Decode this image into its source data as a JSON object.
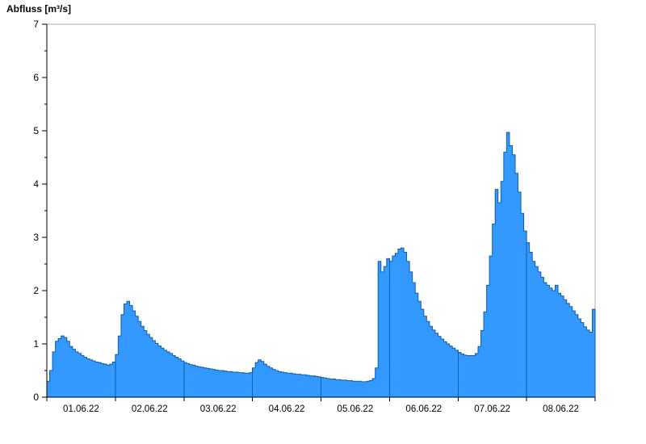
{
  "chart_data": {
    "type": "area",
    "title": "Abfluss [m³/s]",
    "ylabel": "Abfluss [m³/s]",
    "xlabel": "",
    "ylim": [
      0,
      7
    ],
    "y_ticks": [
      0,
      1,
      2,
      3,
      4,
      5,
      6,
      7
    ],
    "x_tick_labels": [
      "01.06.22",
      "02.06.22",
      "03.06.22",
      "04.06.22",
      "05.06.22",
      "06.06.22",
      "07.06.22",
      "08.06.22"
    ],
    "hours_per_day": 24,
    "grid": "off",
    "legend": "none",
    "colors": {
      "fill": "#3399FF",
      "outline": "#0F5CA8",
      "day_divider": "#0F5CA8",
      "axis": "#000000",
      "frame": "#A9A9A9",
      "text": "#000000",
      "background": "#FFFFFF"
    },
    "series": [
      {
        "name": "Abfluss",
        "unit": "m³/s",
        "step": "hourly",
        "values_hourly": [
          0.3,
          0.5,
          0.85,
          1.05,
          1.1,
          1.15,
          1.12,
          1.05,
          0.95,
          0.9,
          0.85,
          0.82,
          0.78,
          0.75,
          0.72,
          0.7,
          0.68,
          0.66,
          0.65,
          0.63,
          0.62,
          0.6,
          0.62,
          0.66,
          0.8,
          1.15,
          1.55,
          1.75,
          1.8,
          1.72,
          1.62,
          1.52,
          1.42,
          1.33,
          1.25,
          1.18,
          1.12,
          1.06,
          1.01,
          0.96,
          0.92,
          0.88,
          0.85,
          0.82,
          0.78,
          0.75,
          0.72,
          0.68,
          0.65,
          0.63,
          0.61,
          0.6,
          0.58,
          0.57,
          0.56,
          0.55,
          0.54,
          0.53,
          0.52,
          0.51,
          0.5,
          0.5,
          0.49,
          0.48,
          0.48,
          0.47,
          0.47,
          0.46,
          0.46,
          0.45,
          0.45,
          0.46,
          0.55,
          0.65,
          0.7,
          0.67,
          0.62,
          0.58,
          0.55,
          0.52,
          0.5,
          0.48,
          0.47,
          0.46,
          0.45,
          0.45,
          0.44,
          0.43,
          0.43,
          0.42,
          0.42,
          0.41,
          0.4,
          0.4,
          0.39,
          0.38,
          0.37,
          0.36,
          0.35,
          0.34,
          0.34,
          0.33,
          0.33,
          0.32,
          0.32,
          0.31,
          0.31,
          0.3,
          0.3,
          0.3,
          0.29,
          0.29,
          0.3,
          0.31,
          0.35,
          0.55,
          2.55,
          2.35,
          2.45,
          2.6,
          2.55,
          2.65,
          2.7,
          2.78,
          2.8,
          2.72,
          2.55,
          2.35,
          2.15,
          1.95,
          1.8,
          1.65,
          1.52,
          1.42,
          1.33,
          1.26,
          1.2,
          1.14,
          1.09,
          1.04,
          1.0,
          0.96,
          0.92,
          0.88,
          0.84,
          0.81,
          0.79,
          0.78,
          0.78,
          0.78,
          0.82,
          0.95,
          1.25,
          1.6,
          2.1,
          2.65,
          3.25,
          3.9,
          3.65,
          4.05,
          4.6,
          4.97,
          4.72,
          4.55,
          4.2,
          3.85,
          3.45,
          3.12,
          2.9,
          2.72,
          2.55,
          2.45,
          2.35,
          2.25,
          2.15,
          2.1,
          2.05,
          2.0,
          2.1,
          1.95,
          1.9,
          1.83,
          1.76,
          1.7,
          1.62,
          1.55,
          1.47,
          1.4,
          1.32,
          1.26,
          1.22,
          1.65
        ]
      }
    ]
  }
}
